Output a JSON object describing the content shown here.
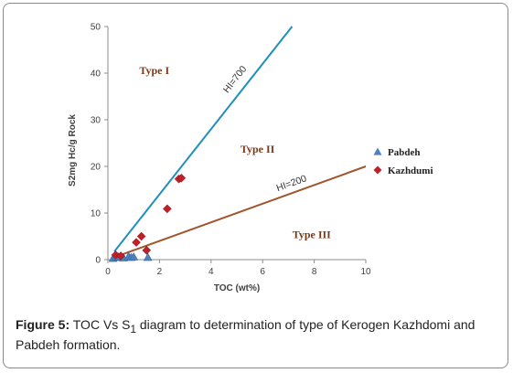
{
  "chart_data": {
    "type": "scatter",
    "title": "",
    "xlabel": "TOC (wt%)",
    "ylabel": "S2mg Hc/g Rock",
    "xlim": [
      0,
      10
    ],
    "ylim": [
      0,
      50
    ],
    "xticks": [
      0,
      2,
      4,
      6,
      8,
      10
    ],
    "yticks": [
      0,
      10,
      20,
      30,
      40,
      50
    ],
    "grid": false,
    "legend_position": "right",
    "reference_lines": [
      {
        "label": "HI=700",
        "slope": 7,
        "color": "#1f8fbf"
      },
      {
        "label": "HI=200",
        "slope": 2,
        "color": "#a0562a"
      }
    ],
    "regions": [
      "Type I",
      "Type II",
      "Type III"
    ],
    "series": [
      {
        "name": "Pabdeh",
        "marker": "triangle",
        "color": "#4f81bd",
        "points": [
          [
            0.2,
            0.3
          ],
          [
            0.3,
            0.5
          ],
          [
            0.4,
            0.6
          ],
          [
            0.6,
            0.4
          ],
          [
            0.8,
            0.7
          ],
          [
            0.9,
            0.5
          ],
          [
            1.0,
            0.6
          ],
          [
            1.55,
            0.5
          ]
        ]
      },
      {
        "name": "Kazhdumi",
        "marker": "diamond",
        "color": "#c0202a",
        "points": [
          [
            0.3,
            1.0
          ],
          [
            0.5,
            0.8
          ],
          [
            1.1,
            3.7
          ],
          [
            1.3,
            5.0
          ],
          [
            1.5,
            2.0
          ],
          [
            2.3,
            10.9
          ],
          [
            2.75,
            17.3
          ],
          [
            2.85,
            17.5
          ]
        ]
      }
    ]
  },
  "caption": {
    "label": "Figure 5:",
    "text_before_sub": " TOC Vs S",
    "subscript": "1",
    "text_after_sub": " diagram to determination of type of Kerogen Kazhdomi and Pabdeh formation."
  }
}
